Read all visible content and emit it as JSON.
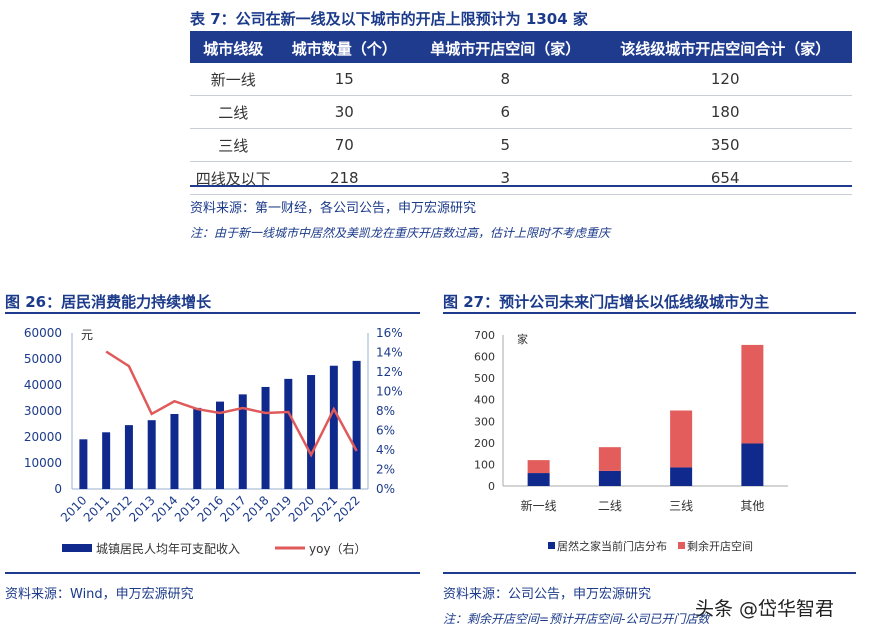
{
  "table": {
    "title": "表 7：公司在新一线及以下城市的开店上限预计为 1304 家",
    "headers": [
      "城市线级",
      "城市数量（个）",
      "单城市开店空间（家）",
      "该线级城市开店空间合计（家）"
    ],
    "rows": [
      [
        "新一线",
        "15",
        "8",
        "120"
      ],
      [
        "二线",
        "30",
        "6",
        "180"
      ],
      [
        "三线",
        "70",
        "5",
        "350"
      ],
      [
        "四线及以下",
        "218",
        "3",
        "654"
      ]
    ],
    "source": "资料来源：第一财经，各公司公告，申万宏源研究",
    "note": "注：由于新一线城市中居然及美凯龙在重庆开店数过高，估计上限时不考虑重庆"
  },
  "fig26": {
    "title": "图 26：居民消费能力持续增长",
    "source": "资料来源：Wind，申万宏源研究"
  },
  "fig27": {
    "title": "图 27：预计公司未来门店增长以低线级城市为主",
    "source": "资料来源：公司公告，申万宏源研究",
    "note": "注：剩余开店空间=预计开店空间-公司已开门店数"
  },
  "watermark": "头条 @岱华智君",
  "chart_data": [
    {
      "type": "bar+line",
      "unit_label": "元",
      "categories": [
        "2010",
        "2011",
        "2012",
        "2013",
        "2014",
        "2015",
        "2016",
        "2017",
        "2018",
        "2019",
        "2020",
        "2021",
        "2022"
      ],
      "series": [
        {
          "name": "城镇居民人均年可支配收入",
          "type": "bar",
          "axis": "left",
          "color": "#0f2a8c",
          "values": [
            19109,
            21810,
            24565,
            26467,
            28844,
            31195,
            33616,
            36396,
            39251,
            42359,
            43834,
            47412,
            49283
          ]
        },
        {
          "name": "yoy（右）",
          "type": "line",
          "axis": "right",
          "color": "#e05a5a",
          "values": [
            null,
            14.1,
            12.6,
            7.7,
            9.0,
            8.2,
            7.8,
            8.3,
            7.8,
            7.9,
            3.5,
            8.2,
            3.9
          ]
        }
      ],
      "ylim": [
        0,
        60000
      ],
      "yticks": [
        0,
        10000,
        20000,
        30000,
        40000,
        50000,
        60000
      ],
      "y2lim": [
        0,
        16
      ],
      "y2ticks": [
        "0%",
        "2%",
        "4%",
        "6%",
        "8%",
        "10%",
        "12%",
        "14%",
        "16%"
      ],
      "legend": "bottom"
    },
    {
      "type": "stacked-bar",
      "unit_label": "家",
      "categories": [
        "新一线",
        "二线",
        "三线",
        "其他"
      ],
      "series": [
        {
          "name": "居然之家当前门店分布",
          "color": "#0f2a8c",
          "values": [
            60,
            70,
            86,
            197
          ]
        },
        {
          "name": "剩余开店空间",
          "color": "#e35d5d",
          "values": [
            60,
            110,
            264,
            457
          ]
        }
      ],
      "ylim": [
        0,
        700
      ],
      "yticks": [
        0,
        100,
        200,
        300,
        400,
        500,
        600,
        700
      ],
      "legend": "bottom"
    }
  ]
}
